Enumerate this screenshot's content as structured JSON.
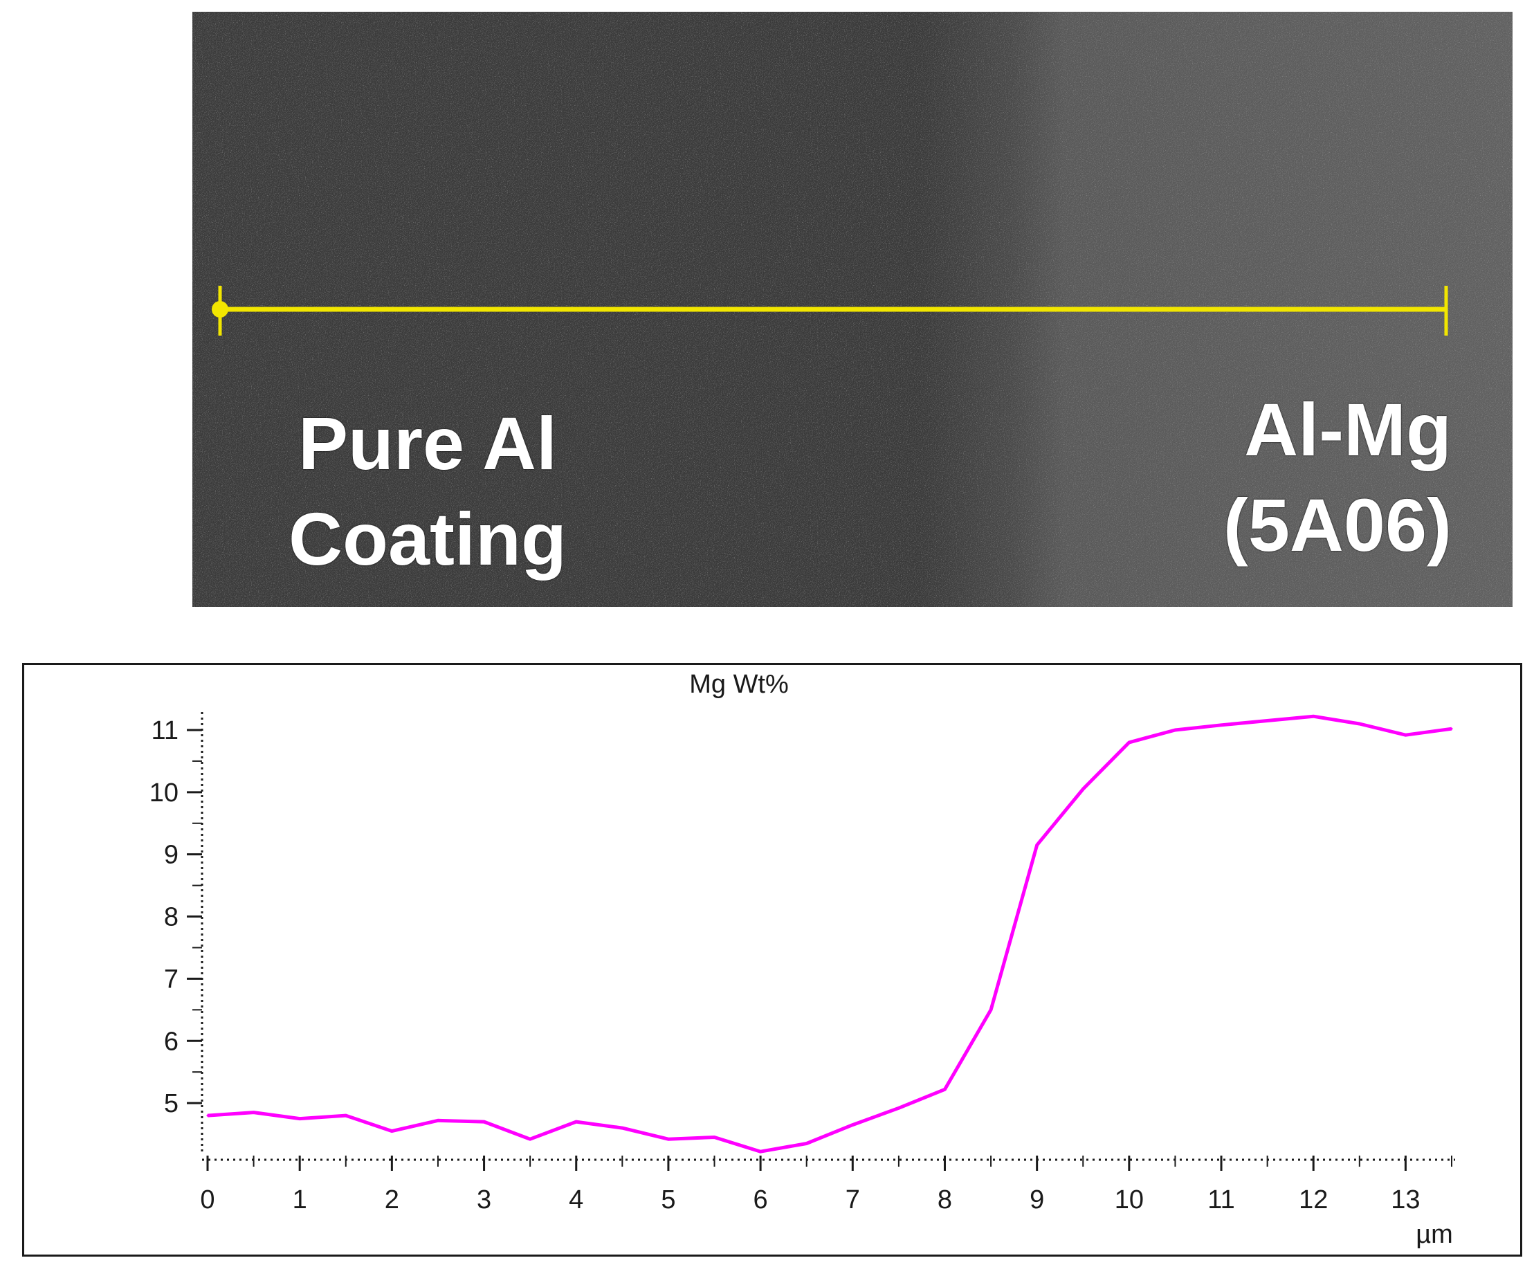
{
  "micrograph": {
    "left_label_line1": "Pure Al",
    "left_label_line2": "Coating",
    "right_label_line1": "Al-Mg",
    "right_label_line2": "(5A06)",
    "scan_line_color": "#f2e600",
    "background_color_left": "#3a3a3a",
    "background_color_right": "#555555"
  },
  "chart_data": {
    "type": "line",
    "title": "Mg Wt%",
    "xlabel": "µm",
    "ylabel": "",
    "xlim": [
      0,
      13.5
    ],
    "ylim": [
      4.2,
      11.2
    ],
    "x_ticks": [
      0,
      1,
      2,
      3,
      4,
      5,
      6,
      7,
      8,
      9,
      10,
      11,
      12,
      13
    ],
    "y_ticks": [
      5,
      6,
      7,
      8,
      9,
      10,
      11
    ],
    "grid": false,
    "series": [
      {
        "name": "Mg Wt%",
        "color": "#ff00ff",
        "x": [
          0,
          0.5,
          1,
          1.5,
          2,
          2.5,
          3,
          3.5,
          4,
          4.5,
          5,
          5.5,
          6,
          6.5,
          7,
          7.5,
          8,
          8.5,
          9,
          9.5,
          10,
          10.5,
          11,
          11.5,
          12,
          12.5,
          13,
          13.5
        ],
        "y": [
          4.8,
          4.85,
          4.75,
          4.8,
          4.55,
          4.72,
          4.7,
          4.42,
          4.7,
          4.6,
          4.42,
          4.45,
          4.22,
          4.35,
          4.65,
          4.92,
          5.22,
          6.5,
          9.15,
          10.05,
          10.8,
          11.0,
          11.08,
          11.15,
          11.22,
          11.1,
          10.92,
          11.02
        ]
      }
    ]
  }
}
